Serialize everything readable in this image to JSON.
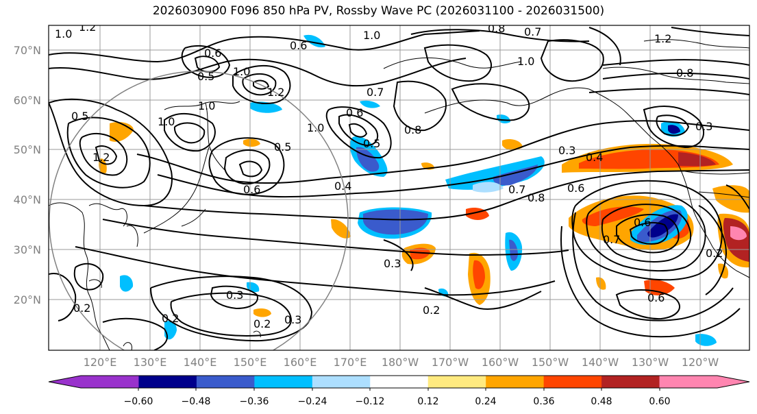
{
  "title": "2026030900 F096 850 hPa PV, Rossby Wave PC (2026031100 - 2026031500)",
  "axes": {
    "lat_labels": [
      "70°N",
      "60°N",
      "50°N",
      "40°N",
      "30°N",
      "20°N"
    ],
    "lon_labels": [
      "120°E",
      "130°E",
      "140°E",
      "150°E",
      "160°E",
      "170°E",
      "180°W",
      "170°W",
      "160°W",
      "150°W",
      "140°W",
      "130°W",
      "120°W"
    ]
  },
  "colorbar": {
    "ticks": [
      "−0.60",
      "−0.48",
      "−0.36",
      "−0.24",
      "−0.12",
      "0.12",
      "0.24",
      "0.36",
      "0.48",
      "0.60"
    ],
    "colors": [
      "#9932CC",
      "#00008B",
      "#3A5BCC",
      "#00BFFF",
      "#ADDFFF",
      "#FFFFFF",
      "#FFEA80",
      "#FFA500",
      "#FF4500",
      "#B22222",
      "#FF85B0"
    ]
  },
  "contour_labels": [
    "1.0",
    "1.2",
    "0.6",
    "0.5",
    "1.0",
    "1.2",
    "0.6",
    "1.0",
    "0.8",
    "0.7",
    "1.0",
    "1.2",
    "1.0",
    "0.7",
    "0.6",
    "0.5",
    "1.0",
    "0.8",
    "0.3",
    "0.4",
    "0.6",
    "0.8",
    "0.7",
    "0.4",
    "0.3",
    "0.2",
    "0.3",
    "0.2",
    "0.3",
    "0.2",
    "0.7",
    "0.6",
    "0.2",
    "0.6",
    "0.3",
    "0.8",
    "0.5",
    "1.2",
    "0.6",
    "0.2",
    "0.5",
    "1.0"
  ]
}
